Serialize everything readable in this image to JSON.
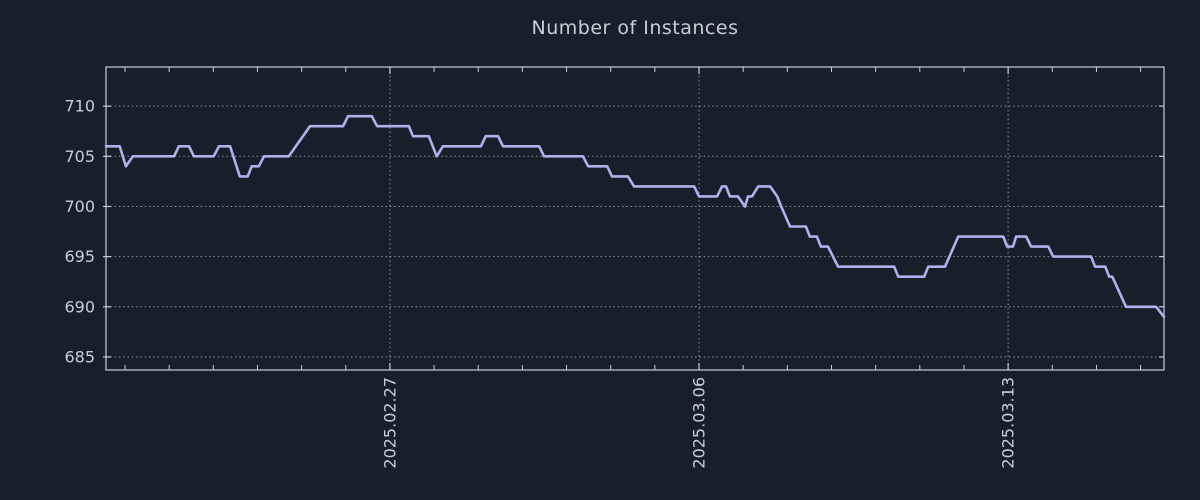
{
  "page": {
    "background_color": "#161f2a"
  },
  "chart_data": {
    "type": "line",
    "title": "Number of Instances",
    "legend": "none",
    "grid": {
      "style": "dotted",
      "color": "#8f959e"
    },
    "frame_color": "#c9ced6",
    "text_color": "#c9ced6",
    "x_axis": {
      "tick_labels": [
        {
          "label": "2025.02.27",
          "day": 0
        },
        {
          "label": "2025.03.06",
          "day": 7
        },
        {
          "label": "2025.03.13",
          "day": 14
        }
      ],
      "minor_tick_every_days": 1,
      "range_days": [
        -6.43,
        17.53
      ],
      "label_rotation_deg": 90
    },
    "y_axis": {
      "ticks": [
        685,
        690,
        695,
        700,
        705,
        710
      ],
      "range": [
        683.7,
        713.9
      ]
    },
    "series": [
      {
        "name": "Number of Instances",
        "color": "#aeb1ec",
        "points": [
          [
            -6.43,
            706
          ],
          [
            -6.12,
            706
          ],
          [
            -5.98,
            704
          ],
          [
            -5.82,
            705
          ],
          [
            -4.89,
            705
          ],
          [
            -4.78,
            706
          ],
          [
            -4.55,
            706
          ],
          [
            -4.44,
            705
          ],
          [
            -3.99,
            705
          ],
          [
            -3.87,
            706
          ],
          [
            -3.62,
            706
          ],
          [
            -3.4,
            703
          ],
          [
            -3.22,
            703
          ],
          [
            -3.13,
            704
          ],
          [
            -2.97,
            704
          ],
          [
            -2.85,
            705
          ],
          [
            -2.29,
            705
          ],
          [
            -1.81,
            708
          ],
          [
            -1.06,
            708
          ],
          [
            -0.95,
            709
          ],
          [
            -0.41,
            709
          ],
          [
            -0.29,
            708
          ],
          [
            0.43,
            708
          ],
          [
            0.52,
            707
          ],
          [
            0.88,
            707
          ],
          [
            1.06,
            705
          ],
          [
            1.2,
            706
          ],
          [
            2.06,
            706
          ],
          [
            2.17,
            707
          ],
          [
            2.45,
            707
          ],
          [
            2.56,
            706
          ],
          [
            3.38,
            706
          ],
          [
            3.49,
            705
          ],
          [
            4.37,
            705
          ],
          [
            4.49,
            704
          ],
          [
            4.92,
            704
          ],
          [
            5.03,
            703
          ],
          [
            5.39,
            703
          ],
          [
            5.53,
            702
          ],
          [
            6.89,
            702
          ],
          [
            7.0,
            701
          ],
          [
            7.41,
            701
          ],
          [
            7.52,
            702
          ],
          [
            7.61,
            702
          ],
          [
            7.7,
            701
          ],
          [
            7.88,
            701
          ],
          [
            8.04,
            700
          ],
          [
            8.11,
            701
          ],
          [
            8.2,
            701
          ],
          [
            8.34,
            702
          ],
          [
            8.61,
            702
          ],
          [
            8.77,
            701
          ],
          [
            8.86,
            700
          ],
          [
            9.06,
            698
          ],
          [
            9.42,
            698
          ],
          [
            9.51,
            697
          ],
          [
            9.67,
            697
          ],
          [
            9.76,
            696
          ],
          [
            9.92,
            696
          ],
          [
            10.15,
            694
          ],
          [
            11.42,
            694
          ],
          [
            11.51,
            693
          ],
          [
            12.1,
            693
          ],
          [
            12.19,
            694
          ],
          [
            12.57,
            694
          ],
          [
            12.87,
            697
          ],
          [
            13.89,
            697
          ],
          [
            13.98,
            696
          ],
          [
            14.11,
            696
          ],
          [
            14.18,
            697
          ],
          [
            14.41,
            697
          ],
          [
            14.52,
            696
          ],
          [
            14.91,
            696
          ],
          [
            15.02,
            695
          ],
          [
            15.88,
            695
          ],
          [
            15.97,
            694
          ],
          [
            16.2,
            694
          ],
          [
            16.29,
            693
          ],
          [
            16.36,
            693
          ],
          [
            16.67,
            690
          ],
          [
            17.35,
            690
          ],
          [
            17.53,
            689
          ]
        ]
      }
    ]
  }
}
